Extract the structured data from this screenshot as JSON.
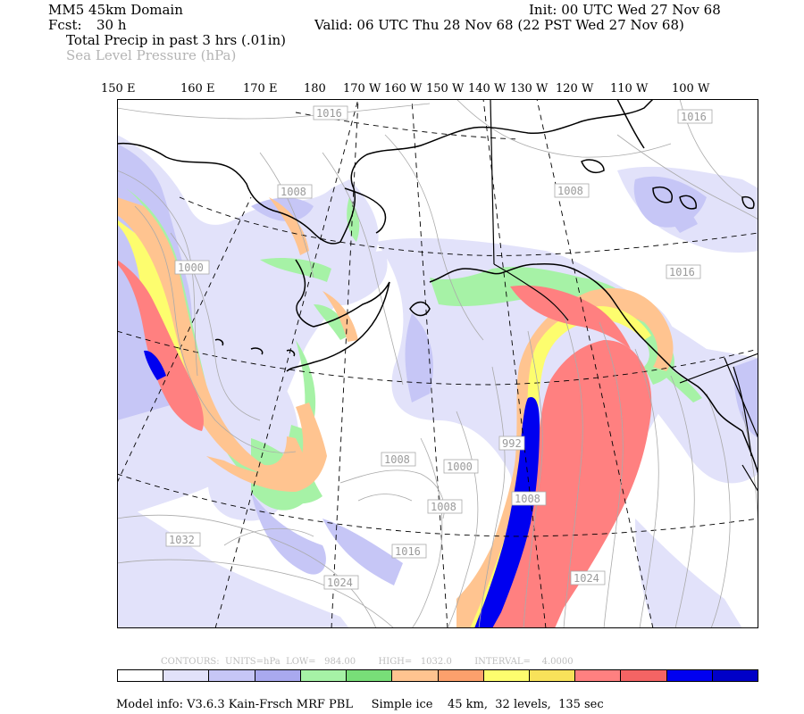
{
  "header": {
    "domain_title": "MM5 45km Domain",
    "forecast_label": "Fcst:",
    "forecast_value": "30 h",
    "init_time": "Init: 00 UTC Wed 27 Nov 68",
    "valid_time": "Valid: 06 UTC Thu 28 Nov 68 (22 PST Wed 27 Nov 68)",
    "field_primary": "Total Precip in past 3 hrs (.01in)",
    "field_secondary": "Sea Level Pressure (hPa)"
  },
  "longitude_labels": [
    "150 E",
    "160 E",
    "170 E",
    "180",
    "170 W",
    "160 W",
    "150 W",
    "140 W",
    "130 W",
    "120 W",
    "110 W",
    "100 W"
  ],
  "pressure_contours": {
    "labels": [
      "1016",
      "1016",
      "1008",
      "1008",
      "1016",
      "1000",
      "1032",
      "1008",
      "1000",
      "1008",
      "1016",
      "1024",
      "992",
      "1008",
      "1024"
    ]
  },
  "contour_info": {
    "text": "CONTOURS:  UNITS=hPa  LOW=   984.00        HIGH=   1032.0        INTERVAL=    4.0000"
  },
  "legend": {
    "colors": [
      "#ffffff",
      "#e2e2fa",
      "#c6c6f6",
      "#a9a9ef",
      "#a6f2a6",
      "#78de78",
      "#ffc490",
      "#fca06c",
      "#fdfd6e",
      "#f8e25a",
      "#ff8080",
      "#f46464",
      "#0000f0",
      "#0000c8"
    ]
  },
  "footer": {
    "model_info": "Model info: V3.6.3 Kain-Frsch MRF PBL     Simple ice    45 km,  32 levels,  135 sec"
  }
}
